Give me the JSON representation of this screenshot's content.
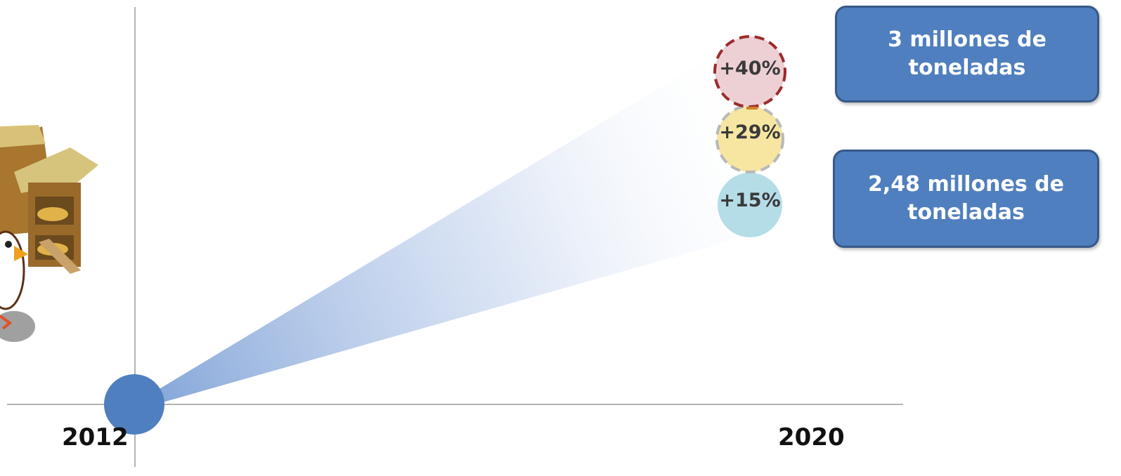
{
  "timeline": {
    "start_year": "2012",
    "end_year": "2020"
  },
  "growth_markers": [
    {
      "label": "+40%",
      "fill": "#edd0d4",
      "border": "#9c2b2b",
      "style": "dashed"
    },
    {
      "label": "+29%",
      "fill": "#f6e6a2",
      "border": "#b8b8b8",
      "style": "dashed"
    },
    {
      "label": "+15%",
      "fill": "#b4dde8",
      "border": "none",
      "style": "solid"
    }
  ],
  "callouts": [
    {
      "line1": "3 millones de",
      "line2": "toneladas"
    },
    {
      "line1": "2,48 millones de",
      "line2": "toneladas"
    }
  ],
  "colors": {
    "accent": "#4f7fbe",
    "axis": "#9a9a9a"
  }
}
